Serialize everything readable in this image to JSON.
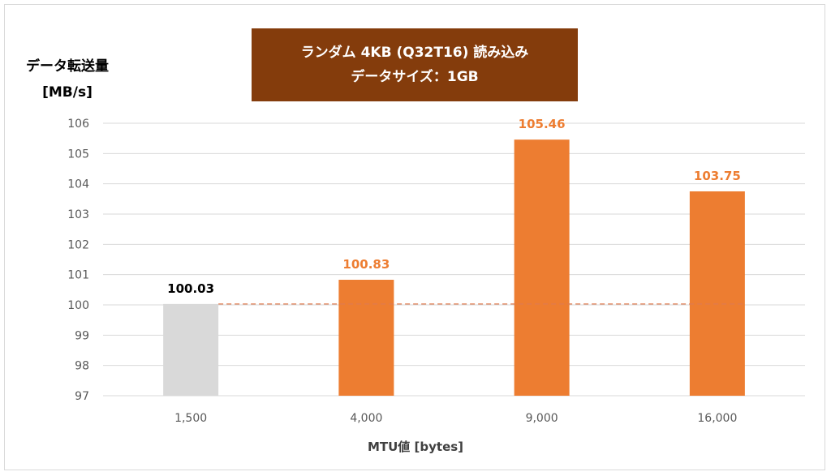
{
  "chart_data": {
    "type": "bar",
    "title": "ランダム 4KB (Q32T16) 読み込み",
    "subtitle": "データサイズ：1GB",
    "ylabel_line1": "データ転送量",
    "ylabel_line2": "[MB/s]",
    "xlabel": "MTU値 [bytes]",
    "categories": [
      "1,500",
      "4,000",
      "9,000",
      "16,000"
    ],
    "values": [
      100.03,
      100.83,
      105.46,
      103.75
    ],
    "value_labels": [
      "100.03",
      "100.83",
      "105.46",
      "103.75"
    ],
    "ylim": [
      97,
      106
    ],
    "yticks": [
      97,
      98,
      99,
      100,
      101,
      102,
      103,
      104,
      105,
      106
    ],
    "baseline_reference": 100.03,
    "grid": true,
    "legend": "none",
    "colors": {
      "baseline_bar": "#d9d9d9",
      "bar": "#ed7d31",
      "baseline_label": "#000000",
      "label": "#ed7d31",
      "reference_line": "#e07a4f",
      "grid": "#d9d9d9",
      "title_bg": "#843c0c"
    }
  }
}
